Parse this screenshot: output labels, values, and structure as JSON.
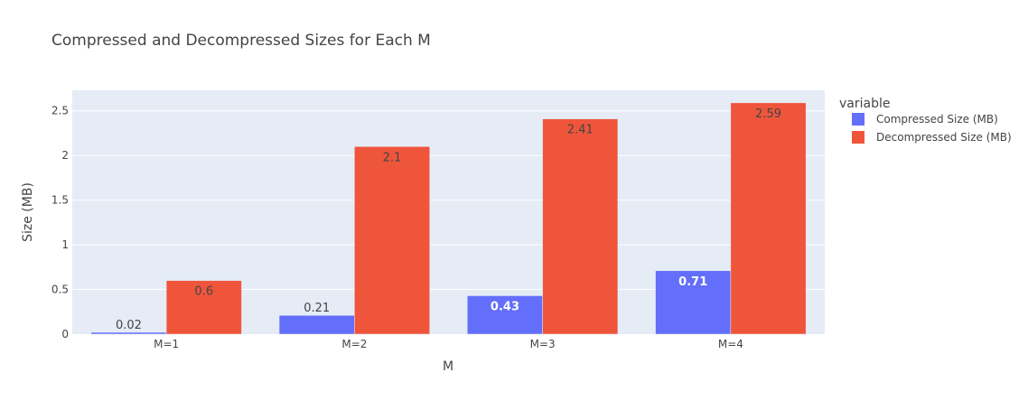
{
  "chart_data": {
    "type": "bar",
    "title": "Compressed and Decompressed Sizes for Each M",
    "xlabel": "M",
    "ylabel": "Size (MB)",
    "categories": [
      "M=1",
      "M=2",
      "M=3",
      "M=4"
    ],
    "ylim": [
      0,
      2.73
    ],
    "yticks": [
      0,
      0.5,
      1,
      1.5,
      2,
      2.5
    ],
    "ytick_labels": [
      "0",
      "0.5",
      "1",
      "1.5",
      "2",
      "2.5"
    ],
    "grid": true,
    "legend_title": "variable",
    "legend_position": "right",
    "series": [
      {
        "name": "Compressed Size (MB)",
        "color": "#636efa",
        "values": [
          0.02,
          0.21,
          0.43,
          0.71
        ],
        "labels": [
          "0.02",
          "0.21",
          "0.43",
          "0.71"
        ]
      },
      {
        "name": "Decompressed Size (MB)",
        "color": "#ef553b",
        "values": [
          0.6,
          2.1,
          2.41,
          2.59
        ],
        "labels": [
          "0.6",
          "2.1",
          "2.41",
          "2.59"
        ]
      }
    ],
    "plot_background": "#e5ecf6"
  }
}
